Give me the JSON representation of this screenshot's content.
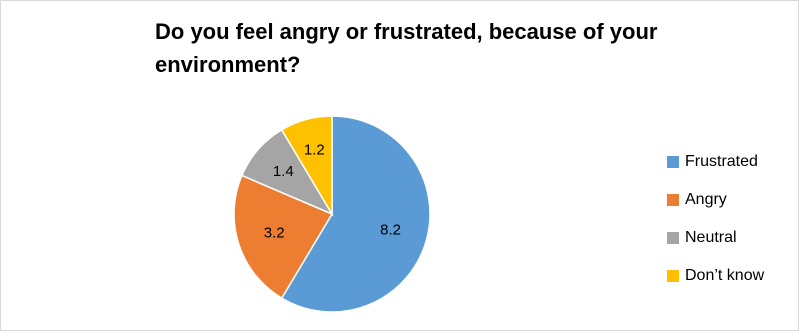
{
  "chart_data": {
    "type": "pie",
    "title": "Do you feel angry or frustrated, because of your environment?",
    "categories": [
      "Frustrated",
      "Angry",
      "Neutral",
      "Don’t know"
    ],
    "values": [
      8.2,
      3.2,
      1.4,
      1.2
    ],
    "colors": [
      "#5b9bd5",
      "#ed7d31",
      "#a5a5a5",
      "#ffc000"
    ],
    "legend_position": "right",
    "data_labels": [
      "8.2",
      "3.2",
      "1.4",
      "1.2"
    ]
  },
  "legend": {
    "items": [
      {
        "label": "Frustrated",
        "color": "#5b9bd5"
      },
      {
        "label": "Angry",
        "color": "#ed7d31"
      },
      {
        "label": "Neutral",
        "color": "#a5a5a5"
      },
      {
        "label": "Don’t know",
        "color": "#ffc000"
      }
    ]
  }
}
